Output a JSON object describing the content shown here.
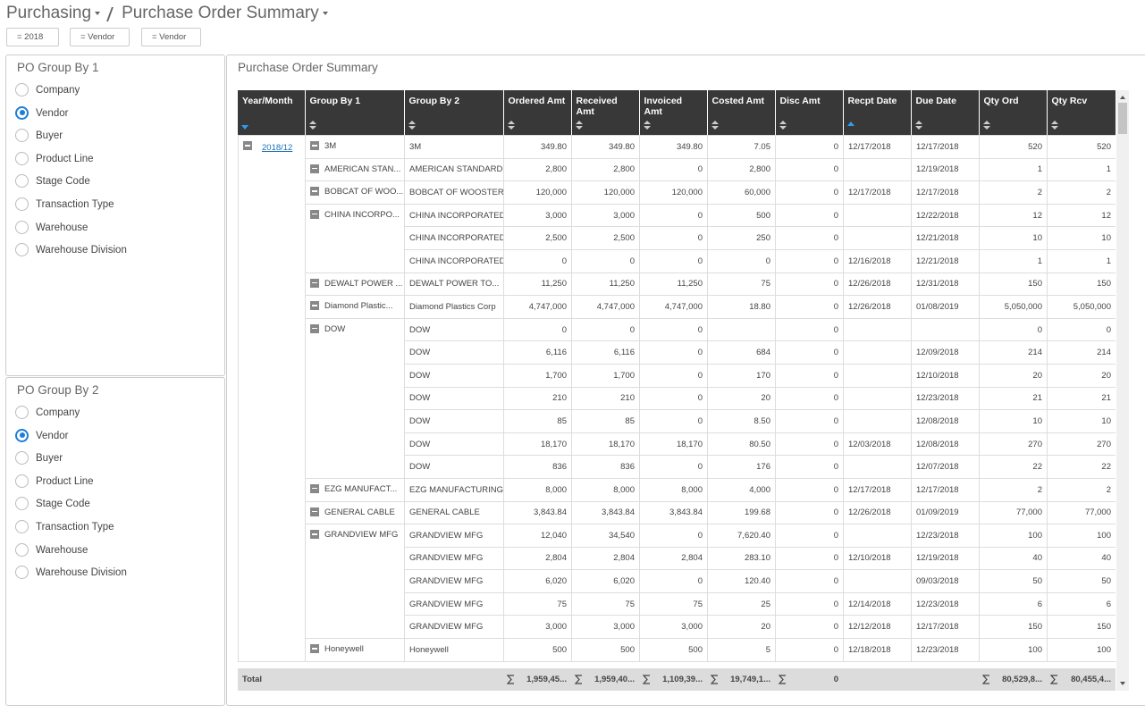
{
  "header": {
    "module": "Purchasing",
    "page": "Purchase Order Summary"
  },
  "filters": [
    "= 2018",
    "= Vendor",
    "= Vendor"
  ],
  "group_by_1": {
    "title": "PO Group By 1",
    "selected": 1,
    "options": [
      "Company",
      "Vendor",
      "Buyer",
      "Product Line",
      "Stage Code",
      "Transaction Type",
      "Warehouse",
      "Warehouse Division"
    ]
  },
  "group_by_2": {
    "title": "PO Group By 2",
    "selected": 1,
    "options": [
      "Company",
      "Vendor",
      "Buyer",
      "Product Line",
      "Stage Code",
      "Transaction Type",
      "Warehouse",
      "Warehouse Division"
    ]
  },
  "table": {
    "title": "Purchase Order Summary",
    "columns": [
      "Year/Month",
      "Group By 1",
      "Group By 2",
      "Ordered Amt",
      "Received Amt",
      "Invoiced Amt",
      "Costed Amt",
      "Disc Amt",
      "Recpt Date",
      "Due Date",
      "Qty Ord",
      "Qty Rcv"
    ],
    "sort_desc_column": 0,
    "sort_asc_column": 8,
    "year_month": "2018/12",
    "groups": [
      {
        "name": "3M",
        "rows": [
          [
            "3M",
            "349.80",
            "349.80",
            "349.80",
            "7.05",
            "0",
            "12/17/2018",
            "12/17/2018",
            "520",
            "520"
          ]
        ]
      },
      {
        "name": "AMERICAN STAN...",
        "rows": [
          [
            "AMERICAN STANDARD",
            "2,800",
            "2,800",
            "0",
            "2,800",
            "0",
            null,
            "12/19/2018",
            "1",
            "1"
          ]
        ]
      },
      {
        "name": "BOBCAT OF WOO...",
        "rows": [
          [
            "BOBCAT OF WOOSTER",
            "120,000",
            "120,000",
            "120,000",
            "60,000",
            "0",
            "12/17/2018",
            "12/17/2018",
            "2",
            "2"
          ]
        ]
      },
      {
        "name": "CHINA INCORPO...",
        "rows": [
          [
            "CHINA INCORPORATED",
            "3,000",
            "3,000",
            "0",
            "500",
            "0",
            null,
            "12/22/2018",
            "12",
            "12"
          ],
          [
            "CHINA INCORPORATED",
            "2,500",
            "2,500",
            "0",
            "250",
            "0",
            null,
            "12/21/2018",
            "10",
            "10"
          ],
          [
            "CHINA INCORPORATED",
            "0",
            "0",
            "0",
            "0",
            "0",
            "12/16/2018",
            "12/21/2018",
            "1",
            "1"
          ]
        ]
      },
      {
        "name": "DEWALT POWER ...",
        "rows": [
          [
            "DEWALT POWER TO...",
            "11,250",
            "11,250",
            "11,250",
            "75",
            "0",
            "12/26/2018",
            "12/31/2018",
            "150",
            "150"
          ]
        ]
      },
      {
        "name": "Diamond Plastic...",
        "rows": [
          [
            "Diamond Plastics Corp",
            "4,747,000",
            "4,747,000",
            "4,747,000",
            "18.80",
            "0",
            "12/26/2018",
            "01/08/2019",
            "5,050,000",
            "5,050,000"
          ]
        ]
      },
      {
        "name": "DOW",
        "rows": [
          [
            "DOW",
            "0",
            "0",
            "0",
            null,
            "0",
            null,
            null,
            "0",
            "0"
          ],
          [
            "DOW",
            "6,116",
            "6,116",
            "0",
            "684",
            "0",
            null,
            "12/09/2018",
            "214",
            "214"
          ],
          [
            "DOW",
            "1,700",
            "1,700",
            "0",
            "170",
            "0",
            null,
            "12/10/2018",
            "20",
            "20"
          ],
          [
            "DOW",
            "210",
            "210",
            "0",
            "20",
            "0",
            null,
            "12/23/2018",
            "21",
            "21"
          ],
          [
            "DOW",
            "85",
            "85",
            "0",
            "8.50",
            "0",
            null,
            "12/08/2018",
            "10",
            "10"
          ],
          [
            "DOW",
            "18,170",
            "18,170",
            "18,170",
            "80.50",
            "0",
            "12/03/2018",
            "12/08/2018",
            "270",
            "270"
          ],
          [
            "DOW",
            "836",
            "836",
            "0",
            "176",
            "0",
            null,
            "12/07/2018",
            "22",
            "22"
          ]
        ]
      },
      {
        "name": "EZG MANUFACT...",
        "rows": [
          [
            "EZG MANUFACTURING",
            "8,000",
            "8,000",
            "8,000",
            "4,000",
            "0",
            "12/17/2018",
            "12/17/2018",
            "2",
            "2"
          ]
        ]
      },
      {
        "name": "GENERAL CABLE",
        "rows": [
          [
            "GENERAL CABLE",
            "3,843.84",
            "3,843.84",
            "3,843.84",
            "199.68",
            "0",
            "12/26/2018",
            "01/09/2019",
            "77,000",
            "77,000"
          ]
        ]
      },
      {
        "name": "GRANDVIEW MFG",
        "rows": [
          [
            "GRANDVIEW MFG",
            "12,040",
            "34,540",
            "0",
            "7,620.40",
            "0",
            null,
            "12/23/2018",
            "100",
            "100"
          ],
          [
            "GRANDVIEW MFG",
            "2,804",
            "2,804",
            "2,804",
            "283.10",
            "0",
            "12/10/2018",
            "12/19/2018",
            "40",
            "40"
          ],
          [
            "GRANDVIEW MFG",
            "6,020",
            "6,020",
            "0",
            "120.40",
            "0",
            null,
            "09/03/2018",
            "50",
            "50"
          ],
          [
            "GRANDVIEW MFG",
            "75",
            "75",
            "75",
            "25",
            "0",
            "12/14/2018",
            "12/23/2018",
            "6",
            "6"
          ],
          [
            "GRANDVIEW MFG",
            "3,000",
            "3,000",
            "3,000",
            "20",
            "0",
            "12/12/2018",
            "12/17/2018",
            "150",
            "150"
          ]
        ]
      },
      {
        "name": "Honeywell",
        "rows": [
          [
            "Honeywell",
            "500",
            "500",
            "500",
            "5",
            "0",
            "12/18/2018",
            "12/23/2018",
            "100",
            "100"
          ]
        ]
      }
    ],
    "total": {
      "label": "Total",
      "values": [
        "1,959,45...",
        "1,959,40...",
        "1,109,39...",
        "19,749,1...",
        "0",
        null,
        null,
        "80,529,8...",
        "80,455,4..."
      ]
    }
  }
}
